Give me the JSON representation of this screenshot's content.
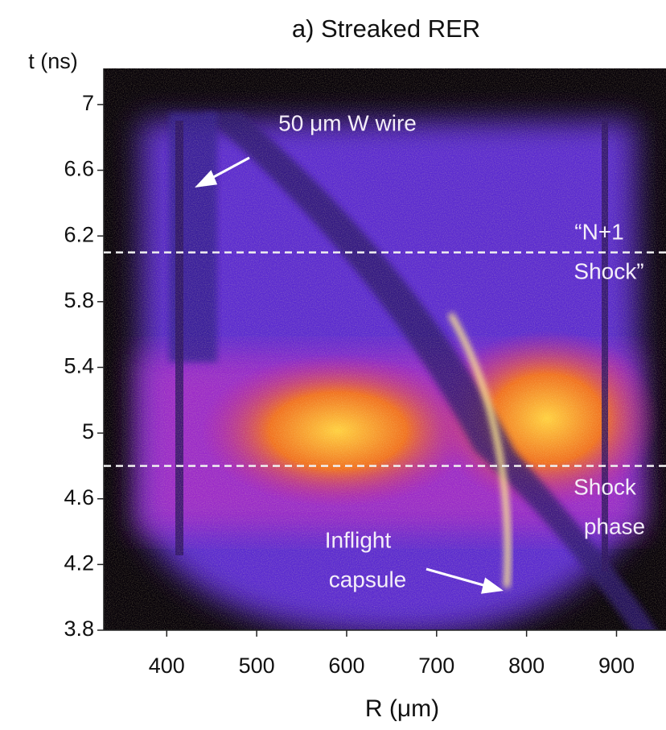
{
  "chart_data": {
    "type": "image",
    "title": "a) Streaked RER",
    "x_label": "R (μm)",
    "y_label": "t (ns)",
    "xlim": [
      330,
      955
    ],
    "ylim": [
      3.8,
      7.22
    ],
    "xticks": [
      400,
      500,
      600,
      700,
      800,
      900
    ],
    "yticks": [
      3.8,
      4.2,
      4.6,
      5,
      5.4,
      5.8,
      6.2,
      6.6,
      7
    ],
    "hlines": [
      6.1,
      4.8
    ],
    "annotations": [
      {
        "lines": [
          "50 μm W wire"
        ]
      },
      {
        "lines": [
          "“N+1",
          "Shock”"
        ]
      },
      {
        "lines": [
          "Shock",
          "phase"
        ]
      },
      {
        "lines": [
          "Inflight",
          "capsule"
        ]
      }
    ]
  }
}
